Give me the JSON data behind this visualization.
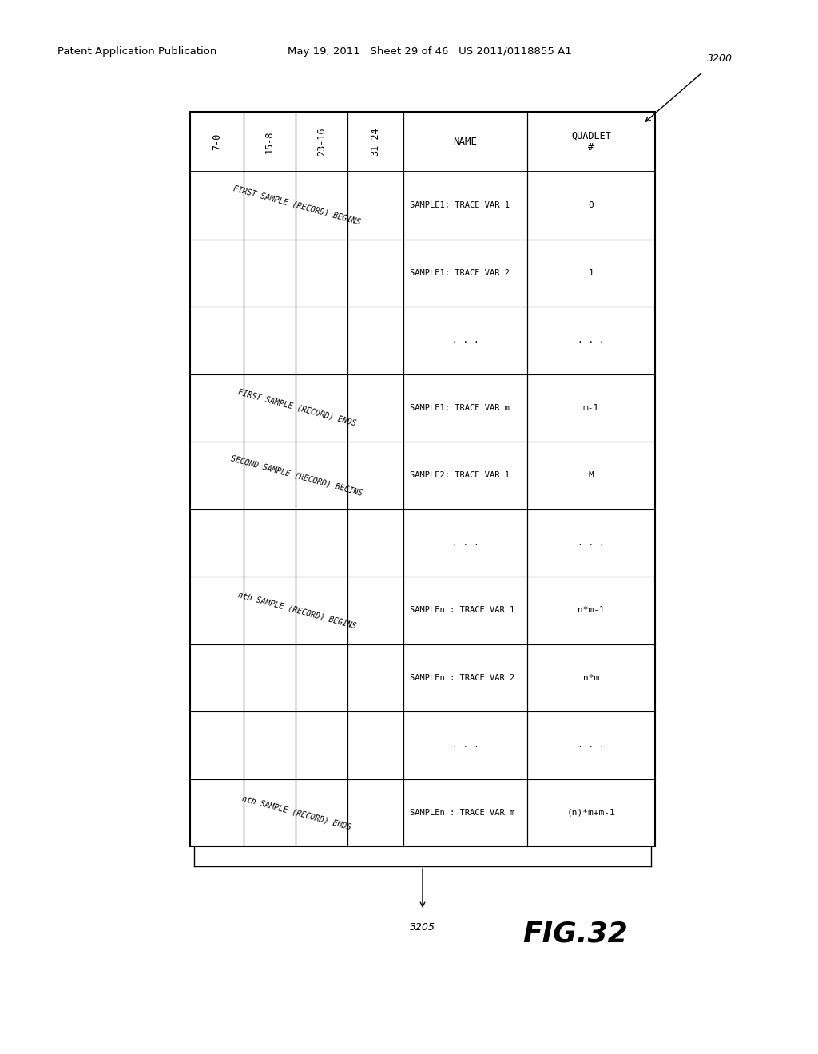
{
  "pub_left": "Patent Application Publication",
  "pub_right": "May 19, 2011   Sheet 29 of 46   US 2011/0118855 A1",
  "fig_label": "FIG.32",
  "ref_3200": "3200",
  "ref_3205": "3205",
  "col_headers": [
    "QUADLET\n#",
    "NAME",
    "31-24",
    "23-16",
    "15-8",
    "7-0"
  ],
  "data_rows": [
    {
      "quadlet": "0",
      "name": "SAMPLE1: TRACE VAR 1",
      "span": "FIRST SAMPLE (RECORD) BEGINS"
    },
    {
      "quadlet": "1",
      "name": "SAMPLE1: TRACE VAR 2",
      "span": ""
    },
    {
      "quadlet": ". . .",
      "name": ". . .",
      "span": ""
    },
    {
      "quadlet": "m-1",
      "name": "SAMPLE1: TRACE VAR m",
      "span": "FIRST SAMPLE (RECORD) ENDS"
    },
    {
      "quadlet": "M",
      "name": "SAMPLE2: TRACE VAR 1",
      "span": "SECOND SAMPLE (RECORD) BEGINS"
    },
    {
      "quadlet": ". . .",
      "name": ". . .",
      "span": ""
    },
    {
      "quadlet": "n*m-1",
      "name": "SAMPLEn : TRACE VAR 1",
      "span": "nth SAMPLE (RECORD) BEGINS"
    },
    {
      "quadlet": "n*m",
      "name": "SAMPLEn : TRACE VAR 2",
      "span": ""
    },
    {
      "quadlet": ". . .",
      "name": ". . .",
      "span": ""
    },
    {
      "quadlet": "(n)*m+m-1",
      "name": "SAMPLEn : TRACE VAR m",
      "span": "nth SAMPLE (RECORD) ENDS"
    }
  ],
  "bg_color": "#ffffff",
  "text_color": "#000000"
}
